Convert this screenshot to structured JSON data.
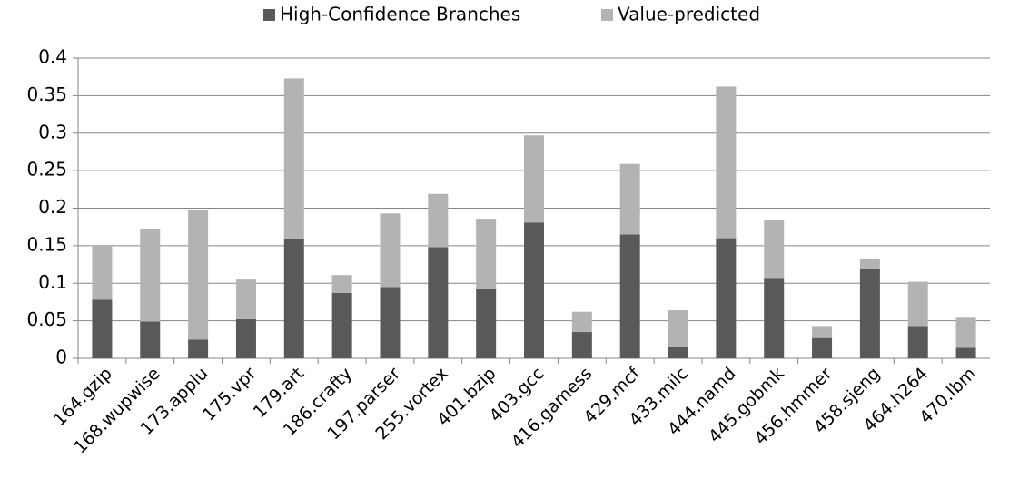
{
  "chart_data": {
    "type": "stacked_bar",
    "categories": [
      "164.gzip",
      "168.wupwise",
      "173.applu",
      "175.vpr",
      "179.art",
      "186.crafty",
      "197.parser",
      "255.vortex",
      "401.bzip",
      "403.gcc",
      "416.gamess",
      "429.mcf",
      "433.milc",
      "444.namd",
      "445.gobmk",
      "456.hmmer",
      "458.sjeng",
      "464.h264",
      "470.lbm"
    ],
    "series": [
      {
        "name": "High-Confidence Branches",
        "color": "#595959",
        "values": [
          0.078,
          0.049,
          0.025,
          0.052,
          0.159,
          0.087,
          0.095,
          0.148,
          0.092,
          0.181,
          0.035,
          0.165,
          0.015,
          0.16,
          0.106,
          0.027,
          0.119,
          0.043,
          0.014
        ]
      },
      {
        "name": "Value-predicted",
        "color": "#b3b3b3",
        "values": [
          0.073,
          0.123,
          0.173,
          0.053,
          0.214,
          0.024,
          0.098,
          0.071,
          0.094,
          0.116,
          0.027,
          0.094,
          0.049,
          0.202,
          0.078,
          0.016,
          0.013,
          0.059,
          0.04
        ]
      }
    ],
    "ylim": [
      0,
      0.4
    ],
    "yticks": [
      0,
      0.05,
      0.1,
      0.15,
      0.2,
      0.25,
      0.3,
      0.35,
      0.4
    ],
    "grid": true,
    "legend": "top"
  }
}
